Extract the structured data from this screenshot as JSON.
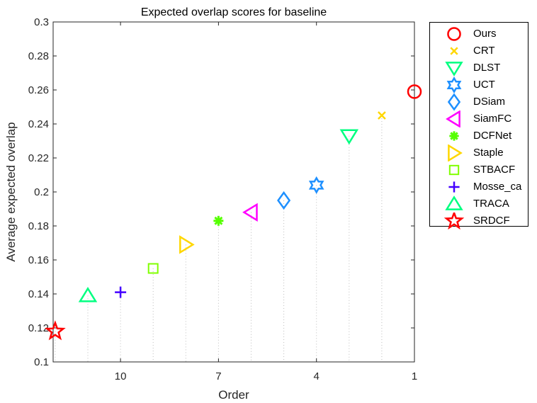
{
  "chart_data": {
    "type": "scatter",
    "title": "Expected overlap scores for baseline",
    "xlabel": "Order",
    "ylabel": "Average expected overlap",
    "ylim": [
      0.1,
      0.3
    ],
    "yticks": [
      "0.1",
      "0.12",
      "0.14",
      "0.16",
      "0.18",
      "0.2",
      "0.22",
      "0.24",
      "0.26",
      "0.28",
      "0.3"
    ],
    "xlim": [
      12,
      1
    ],
    "xticks": [
      "10",
      "7",
      "4",
      "1"
    ],
    "xtick_values": [
      10,
      7,
      4,
      1
    ],
    "x_reversed": true,
    "grid": false,
    "stems": "dotted vertical lines from each point to the x axis",
    "legend_position": "outside-right",
    "series": [
      {
        "name": "Ours",
        "order": 1,
        "value": 0.259,
        "marker": "circle",
        "color": "#ff0000"
      },
      {
        "name": "CRT",
        "order": 2,
        "value": 0.245,
        "marker": "x",
        "color": "#ffd700"
      },
      {
        "name": "DLST",
        "order": 3,
        "value": 0.233,
        "marker": "triangle-down",
        "color": "#00ff80"
      },
      {
        "name": "UCT",
        "order": 4,
        "value": 0.204,
        "marker": "hexagram",
        "color": "#1e90ff"
      },
      {
        "name": "DSiam",
        "order": 5,
        "value": 0.195,
        "marker": "diamond",
        "color": "#1e90ff"
      },
      {
        "name": "SiamFC",
        "order": 6,
        "value": 0.188,
        "marker": "triangle-left",
        "color": "#ff00ff"
      },
      {
        "name": "DCFNet",
        "order": 7,
        "value": 0.183,
        "marker": "asterisk",
        "color": "#55ff00"
      },
      {
        "name": "Staple",
        "order": 8,
        "value": 0.169,
        "marker": "triangle-right",
        "color": "#ffd700"
      },
      {
        "name": "STBACF",
        "order": 9,
        "value": 0.155,
        "marker": "square",
        "color": "#80ff00"
      },
      {
        "name": "Mosse_ca",
        "order": 10,
        "value": 0.141,
        "marker": "plus",
        "color": "#4400ff"
      },
      {
        "name": "TRACA",
        "order": 11,
        "value": 0.139,
        "marker": "triangle-up",
        "color": "#00ff80"
      },
      {
        "name": "SRDCF",
        "order": 12,
        "value": 0.118,
        "marker": "pentagram",
        "color": "#ff0000"
      }
    ]
  }
}
